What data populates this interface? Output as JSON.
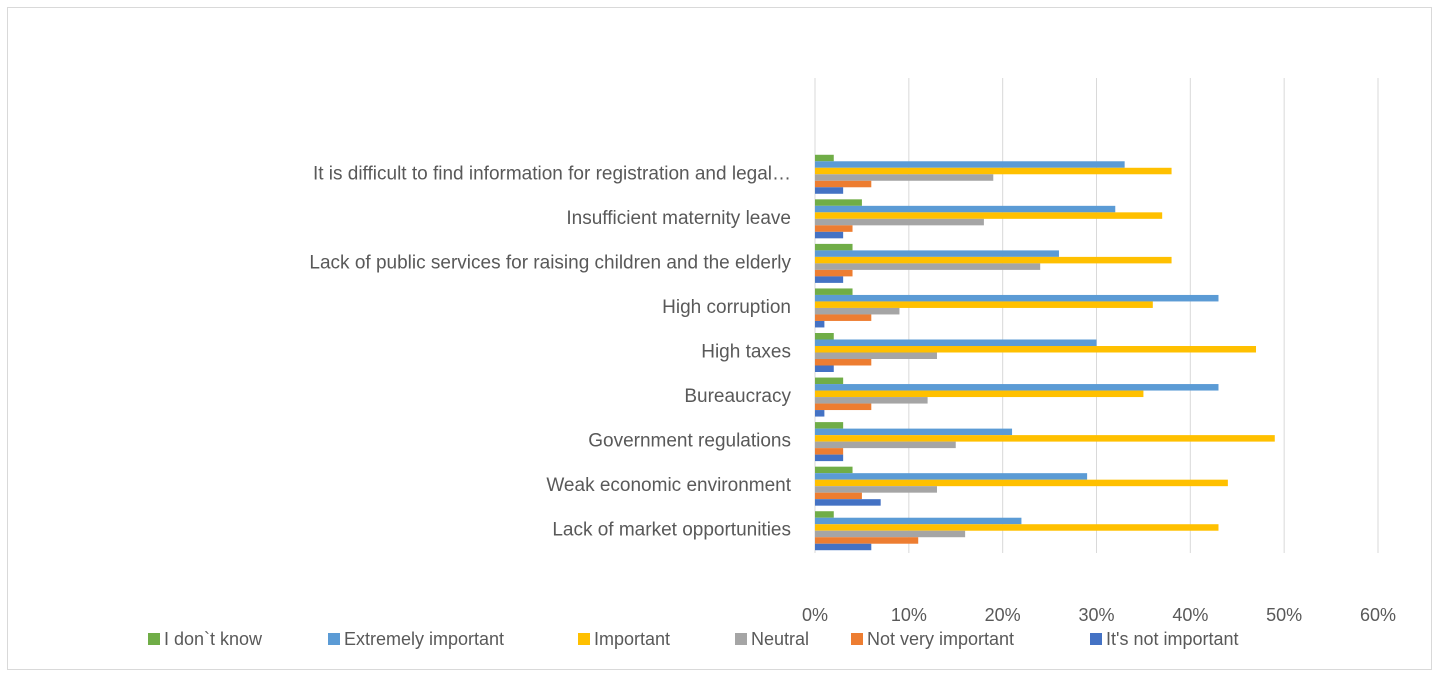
{
  "chart_data": {
    "type": "bar",
    "orientation": "horizontal",
    "categories": [
      "It is difficult to find information for registration and legal…",
      "Insufficient maternity leave",
      "Lack of public services for raising children and the elderly",
      "High corruption",
      "High taxes",
      "Bureaucracy",
      "Government regulations",
      "Weak economic environment",
      "Lack of market opportunities"
    ],
    "series": [
      {
        "name": "I don`t know",
        "color": "#70ad47",
        "values": [
          2,
          5,
          4,
          4,
          2,
          3,
          3,
          4,
          2
        ]
      },
      {
        "name": "Extremely important",
        "color": "#5b9bd5",
        "values": [
          33,
          32,
          26,
          43,
          30,
          43,
          21,
          29,
          22
        ]
      },
      {
        "name": "Important",
        "color": "#ffc000",
        "values": [
          38,
          37,
          38,
          36,
          47,
          35,
          49,
          44,
          43
        ]
      },
      {
        "name": "Neutral",
        "color": "#a5a5a5",
        "values": [
          19,
          18,
          24,
          9,
          13,
          12,
          15,
          13,
          16
        ]
      },
      {
        "name": "Not very important",
        "color": "#ed7d31",
        "values": [
          6,
          4,
          4,
          6,
          6,
          6,
          3,
          5,
          11
        ]
      },
      {
        "name": "It's not important",
        "color": "#4472c4",
        "values": [
          3,
          3,
          3,
          1,
          2,
          1,
          3,
          7,
          6
        ]
      }
    ],
    "xlim": [
      0,
      60
    ],
    "xticks": [
      {
        "value": 0,
        "label": "0%"
      },
      {
        "value": 10,
        "label": "10%"
      },
      {
        "value": 20,
        "label": "20%"
      },
      {
        "value": 30,
        "label": "30%"
      },
      {
        "value": 40,
        "label": "40%"
      },
      {
        "value": 50,
        "label": "50%"
      },
      {
        "value": 60,
        "label": "60%"
      }
    ],
    "grid": true,
    "legend": "bottom"
  }
}
